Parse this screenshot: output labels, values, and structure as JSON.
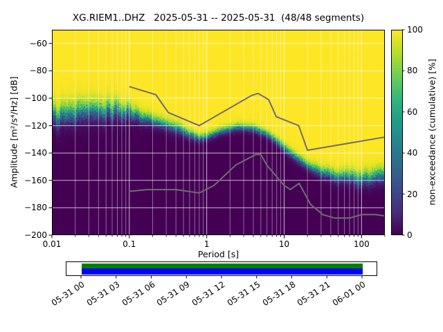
{
  "chart_data": {
    "type": "heatmap",
    "title": "XG.RIEM1..DHZ   2025-05-31 -- 2025-05-31  (48/48 segments)",
    "xlabel": "Period [s]",
    "ylabel": "Amplitude [m²/s⁴/Hz] [dB]",
    "colorbar_label": "non-exceedance (cumulative) [%]",
    "xscale": "log",
    "xlim": [
      0.01,
      200
    ],
    "ylim": [
      -200,
      -50
    ],
    "colormap": "viridis",
    "grid": true,
    "xticks": {
      "values": [
        0.01,
        0.1,
        1,
        10,
        100
      ],
      "labels": [
        "0.01",
        "0.1",
        "1",
        "10",
        "100"
      ]
    },
    "yticks": {
      "values": [
        -60,
        -80,
        -100,
        -120,
        -140,
        -160,
        -180,
        -200
      ],
      "labels": [
        "−60",
        "−80",
        "−100",
        "−120",
        "−140",
        "−160",
        "−180",
        "−200"
      ]
    },
    "colorbar_ticks": {
      "values": [
        0,
        20,
        40,
        60,
        80,
        100
      ],
      "labels": [
        "0",
        "20",
        "40",
        "60",
        "80",
        "100"
      ]
    },
    "distribution": {
      "periods": [
        0.01,
        0.02,
        0.04,
        0.07,
        0.1,
        0.15,
        0.25,
        0.4,
        0.6,
        0.8,
        1.0,
        1.5,
        2.5,
        4.0,
        6.0,
        8.0,
        10,
        15,
        20,
        30,
        50,
        80,
        120,
        200
      ],
      "median_db": [
        -113,
        -112,
        -110,
        -108,
        -110,
        -114,
        -118,
        -121,
        -126,
        -129,
        -128,
        -124,
        -121,
        -122,
        -126,
        -131,
        -136,
        -144,
        -149,
        -154,
        -157,
        -158,
        -158,
        -157
      ],
      "spread_db": [
        7,
        7,
        6.5,
        6,
        5,
        4,
        3.5,
        3.5,
        3,
        2.5,
        2.5,
        2.5,
        2.5,
        2.5,
        2.5,
        2.5,
        3,
        3,
        3,
        3.5,
        4,
        4.5,
        5,
        5
      ]
    },
    "noise_models": {
      "nhnm": [
        [
          0.1,
          -91.5
        ],
        [
          0.22,
          -97.4
        ],
        [
          0.32,
          -110.5
        ],
        [
          0.8,
          -120.0
        ],
        [
          3.8,
          -98.0
        ],
        [
          4.6,
          -96.5
        ],
        [
          6.3,
          -101.0
        ],
        [
          7.9,
          -113.5
        ],
        [
          15.4,
          -120.0
        ],
        [
          20.0,
          -138.0
        ],
        [
          200,
          -128.4
        ]
      ],
      "nlnm": [
        [
          0.1,
          -168.0
        ],
        [
          0.17,
          -166.7
        ],
        [
          0.4,
          -166.7
        ],
        [
          0.8,
          -169.2
        ],
        [
          1.24,
          -163.7
        ],
        [
          2.4,
          -148.6
        ],
        [
          4.3,
          -141.1
        ],
        [
          5.0,
          -141.1
        ],
        [
          6.0,
          -149.0
        ],
        [
          10.0,
          -163.8
        ],
        [
          12.0,
          -166.7
        ],
        [
          15.6,
          -162.1
        ],
        [
          21.9,
          -177.5
        ],
        [
          31.6,
          -185.0
        ],
        [
          45.0,
          -187.5
        ],
        [
          70.0,
          -187.5
        ],
        [
          101.0,
          -185.0
        ],
        [
          154.0,
          -185.0
        ],
        [
          200,
          -186.0
        ]
      ]
    },
    "timeline": {
      "labels": [
        "05-31 00",
        "05-31 03",
        "05-31 06",
        "05-31 09",
        "05-31 12",
        "05-31 15",
        "05-31 18",
        "05-31 21",
        "06-01 00"
      ],
      "colors": {
        "data_top": "#008000",
        "data_bottom": "#0000ff"
      }
    }
  },
  "colors": {
    "background": "#ffffff",
    "noise_model_line": "#6e6e6e",
    "grid": "#ffffff",
    "cmap_min": "#440154",
    "cmap_max": "#fde725"
  }
}
